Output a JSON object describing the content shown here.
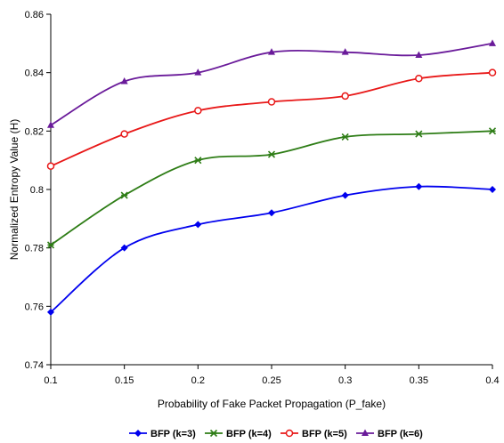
{
  "chart_data": {
    "type": "line",
    "xlabel": "Probability of Fake Packet Propagation (P_fake)",
    "ylabel": "Normalized Entropy Value (H)",
    "x": [
      0.1,
      0.15,
      0.2,
      0.25,
      0.3,
      0.35,
      0.4
    ],
    "x_tick_labels": [
      "0.1",
      "0.15",
      "0.2",
      "0.25",
      "0.3",
      "0.35",
      "0.4"
    ],
    "xlim": [
      0.1,
      0.4
    ],
    "ylim": [
      0.74,
      0.86
    ],
    "y_ticks": [
      0.74,
      0.76,
      0.78,
      0.8,
      0.82,
      0.84,
      0.86
    ],
    "y_tick_labels": [
      "0.74",
      "0.76",
      "0.78",
      "0.8",
      "0.82",
      "0.84",
      "0.86"
    ],
    "grid": false,
    "legend_position": "bottom",
    "series": [
      {
        "name": "BFP (k=3)",
        "color": "#0000ee",
        "marker": "diamond",
        "values": [
          0.758,
          0.78,
          0.788,
          0.792,
          0.798,
          0.801,
          0.8
        ]
      },
      {
        "name": "BFP (k=4)",
        "color": "#2e7d16",
        "marker": "asterisk",
        "values": [
          0.781,
          0.798,
          0.81,
          0.812,
          0.818,
          0.819,
          0.82
        ]
      },
      {
        "name": "BFP (k=5)",
        "color": "#e81818",
        "marker": "circle",
        "values": [
          0.808,
          0.819,
          0.827,
          0.83,
          0.832,
          0.838,
          0.84
        ]
      },
      {
        "name": "BFP (k=6)",
        "color": "#6a1b9a",
        "marker": "triangle",
        "values": [
          0.822,
          0.837,
          0.84,
          0.847,
          0.847,
          0.846,
          0.85
        ]
      }
    ]
  }
}
